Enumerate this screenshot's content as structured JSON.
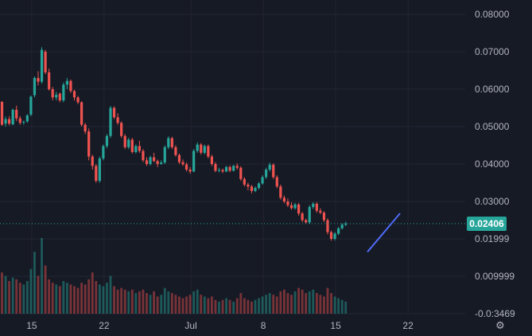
{
  "chart_data": {
    "type": "candlestick",
    "price_axis_labels": [
      "0.08000",
      "0.07000",
      "0.06000",
      "0.05000",
      "0.04000",
      "0.03000",
      "0.01999",
      "0.009999",
      "-0.0:3469"
    ],
    "price_axis_values": [
      0.08,
      0.07,
      0.06,
      0.05,
      0.04,
      0.03,
      0.01999,
      0.009999,
      0.0
    ],
    "last_price": {
      "label": "0.02406",
      "value": 0.02406
    },
    "time_axis_labels": [
      {
        "label": "15",
        "index": 8
      },
      {
        "label": "22",
        "index": 28
      },
      {
        "label": "Jul",
        "index": 52
      },
      {
        "label": "8",
        "index": 72
      },
      {
        "label": "15",
        "index": 92
      },
      {
        "label": "22",
        "index": 112
      }
    ],
    "ylim": [
      0.0,
      0.082
    ],
    "candles": [
      [
        0.0566,
        0.0568,
        0.0502,
        0.0505
      ],
      [
        0.0508,
        0.0527,
        0.05,
        0.052
      ],
      [
        0.052,
        0.0528,
        0.0503,
        0.0508
      ],
      [
        0.0506,
        0.0548,
        0.0504,
        0.0545
      ],
      [
        0.0545,
        0.0556,
        0.0515,
        0.0522
      ],
      [
        0.0522,
        0.0528,
        0.0505,
        0.051
      ],
      [
        0.0512,
        0.0516,
        0.0505,
        0.0513
      ],
      [
        0.0514,
        0.0533,
        0.051,
        0.053
      ],
      [
        0.0532,
        0.0583,
        0.0528,
        0.058
      ],
      [
        0.0584,
        0.0634,
        0.0578,
        0.063
      ],
      [
        0.063,
        0.0648,
        0.061,
        0.062
      ],
      [
        0.062,
        0.0712,
        0.0615,
        0.0705
      ],
      [
        0.07,
        0.0705,
        0.064,
        0.0645
      ],
      [
        0.0645,
        0.0655,
        0.0596,
        0.06
      ],
      [
        0.06,
        0.0606,
        0.057,
        0.0578
      ],
      [
        0.0578,
        0.0593,
        0.057,
        0.0585
      ],
      [
        0.0588,
        0.0591,
        0.0565,
        0.057
      ],
      [
        0.057,
        0.0618,
        0.0565,
        0.0612
      ],
      [
        0.0612,
        0.063,
        0.06,
        0.0622
      ],
      [
        0.0622,
        0.0626,
        0.059,
        0.0595
      ],
      [
        0.0595,
        0.0598,
        0.057,
        0.0578
      ],
      [
        0.0578,
        0.0582,
        0.056,
        0.0565
      ],
      [
        0.0565,
        0.0568,
        0.05,
        0.0505
      ],
      [
        0.0505,
        0.051,
        0.048,
        0.0487
      ],
      [
        0.0487,
        0.0495,
        0.041,
        0.042
      ],
      [
        0.042,
        0.0425,
        0.0385,
        0.0395
      ],
      [
        0.0395,
        0.04,
        0.035,
        0.0355
      ],
      [
        0.0355,
        0.042,
        0.035,
        0.0415
      ],
      [
        0.0415,
        0.0452,
        0.041,
        0.0448
      ],
      [
        0.0448,
        0.048,
        0.0442,
        0.0475
      ],
      [
        0.0475,
        0.0555,
        0.047,
        0.055
      ],
      [
        0.055,
        0.0554,
        0.052,
        0.0525
      ],
      [
        0.0525,
        0.0536,
        0.0505,
        0.051
      ],
      [
        0.051,
        0.0514,
        0.047,
        0.0475
      ],
      [
        0.0475,
        0.048,
        0.044,
        0.0445
      ],
      [
        0.0445,
        0.047,
        0.044,
        0.0465
      ],
      [
        0.0465,
        0.047,
        0.0428,
        0.0432
      ],
      [
        0.0432,
        0.0452,
        0.0428,
        0.0448
      ],
      [
        0.0448,
        0.0462,
        0.043,
        0.0435
      ],
      [
        0.0435,
        0.044,
        0.0405,
        0.041
      ],
      [
        0.041,
        0.0418,
        0.0395,
        0.04
      ],
      [
        0.04,
        0.0422,
        0.0396,
        0.0418
      ],
      [
        0.0418,
        0.043,
        0.0405,
        0.0408
      ],
      [
        0.0408,
        0.0412,
        0.0392,
        0.04
      ],
      [
        0.04,
        0.041,
        0.0398,
        0.0404
      ],
      [
        0.0404,
        0.045,
        0.04,
        0.0445
      ],
      [
        0.0445,
        0.0474,
        0.044,
        0.0469
      ],
      [
        0.0469,
        0.0473,
        0.044,
        0.0445
      ],
      [
        0.0445,
        0.045,
        0.042,
        0.0424
      ],
      [
        0.0424,
        0.0428,
        0.04,
        0.0405
      ],
      [
        0.0405,
        0.0412,
        0.0395,
        0.0399
      ],
      [
        0.0399,
        0.0404,
        0.038,
        0.0385
      ],
      [
        0.0385,
        0.0392,
        0.0374,
        0.038
      ],
      [
        0.038,
        0.044,
        0.0378,
        0.0435
      ],
      [
        0.0435,
        0.0458,
        0.043,
        0.0452
      ],
      [
        0.0452,
        0.0456,
        0.0425,
        0.043
      ],
      [
        0.043,
        0.0452,
        0.0426,
        0.0448
      ],
      [
        0.0448,
        0.0452,
        0.0415,
        0.042
      ],
      [
        0.042,
        0.0425,
        0.0395,
        0.04
      ],
      [
        0.04,
        0.0405,
        0.0378,
        0.0382
      ],
      [
        0.0382,
        0.039,
        0.0378,
        0.0384
      ],
      [
        0.0384,
        0.0388,
        0.0376,
        0.038
      ],
      [
        0.038,
        0.0395,
        0.0378,
        0.0392
      ],
      [
        0.0392,
        0.0396,
        0.0378,
        0.0382
      ],
      [
        0.0382,
        0.0398,
        0.038,
        0.0395
      ],
      [
        0.0395,
        0.0402,
        0.0385,
        0.039
      ],
      [
        0.039,
        0.0394,
        0.0355,
        0.036
      ],
      [
        0.036,
        0.0365,
        0.034,
        0.0345
      ],
      [
        0.0345,
        0.035,
        0.033,
        0.034
      ],
      [
        0.034,
        0.0344,
        0.0322,
        0.0328
      ],
      [
        0.0328,
        0.034,
        0.0325,
        0.0336
      ],
      [
        0.0336,
        0.0352,
        0.0332,
        0.0348
      ],
      [
        0.0348,
        0.037,
        0.0345,
        0.0365
      ],
      [
        0.0365,
        0.039,
        0.036,
        0.0385
      ],
      [
        0.0385,
        0.0404,
        0.038,
        0.0398
      ],
      [
        0.0398,
        0.0402,
        0.036,
        0.0365
      ],
      [
        0.0365,
        0.037,
        0.0335,
        0.034
      ],
      [
        0.034,
        0.0345,
        0.0305,
        0.031
      ],
      [
        0.031,
        0.0316,
        0.0295,
        0.03
      ],
      [
        0.03,
        0.0308,
        0.0285,
        0.029
      ],
      [
        0.029,
        0.0298,
        0.0278,
        0.0282
      ],
      [
        0.0282,
        0.0296,
        0.0278,
        0.0292
      ],
      [
        0.0292,
        0.0296,
        0.0262,
        0.0268
      ],
      [
        0.0268,
        0.0272,
        0.0245,
        0.025
      ],
      [
        0.025,
        0.0254,
        0.024,
        0.0244
      ],
      [
        0.0244,
        0.029,
        0.024,
        0.0285
      ],
      [
        0.0285,
        0.0298,
        0.028,
        0.0294
      ],
      [
        0.0294,
        0.0298,
        0.027,
        0.0275
      ],
      [
        0.0275,
        0.0282,
        0.0266,
        0.027
      ],
      [
        0.027,
        0.0274,
        0.0245,
        0.025
      ],
      [
        0.025,
        0.0255,
        0.0212,
        0.0218
      ],
      [
        0.0218,
        0.0222,
        0.0195,
        0.02
      ],
      [
        0.02,
        0.0218,
        0.0196,
        0.0214
      ],
      [
        0.0214,
        0.0232,
        0.021,
        0.0228
      ],
      [
        0.0228,
        0.0242,
        0.0225,
        0.0238
      ],
      [
        0.0238,
        0.0246,
        0.0234,
        0.02406
      ]
    ],
    "volumes": [
      0.012,
      0.011,
      0.0095,
      0.0105,
      0.01,
      0.009,
      0.0085,
      0.0095,
      0.013,
      0.018,
      0.011,
      0.022,
      0.014,
      0.01,
      0.009,
      0.0085,
      0.008,
      0.0095,
      0.009,
      0.0085,
      0.008,
      0.0075,
      0.009,
      0.0085,
      0.01,
      0.012,
      0.0095,
      0.0085,
      0.008,
      0.009,
      0.011,
      0.008,
      0.007,
      0.0075,
      0.007,
      0.0065,
      0.007,
      0.006,
      0.0065,
      0.007,
      0.006,
      0.0055,
      0.0065,
      0.005,
      0.0055,
      0.0075,
      0.0065,
      0.006,
      0.0055,
      0.005,
      0.0045,
      0.005,
      0.0055,
      0.0065,
      0.007,
      0.0055,
      0.005,
      0.0045,
      0.005,
      0.004,
      0.0035,
      0.004,
      0.0045,
      0.004,
      0.0035,
      0.0045,
      0.006,
      0.0045,
      0.004,
      0.0035,
      0.004,
      0.0045,
      0.005,
      0.0055,
      0.006,
      0.0055,
      0.005,
      0.0065,
      0.007,
      0.006,
      0.0055,
      0.0065,
      0.0075,
      0.007,
      0.006,
      0.0065,
      0.007,
      0.006,
      0.0055,
      0.005,
      0.0075,
      0.006,
      0.005,
      0.0045,
      0.004,
      0.0035
    ],
    "trendline": {
      "from": {
        "index": 101,
        "value": 0.0165
      },
      "to": {
        "index": 110,
        "value": 0.0268
      }
    },
    "colors": {
      "up": "#26a69a",
      "down": "#ef5350",
      "trendline": "#4f6af5",
      "background": "#161a25",
      "grid": "#232632",
      "axis_text": "#b2b5be",
      "last_price": "#26a69a"
    }
  },
  "toolbar": {
    "settings_icon": "gear-icon"
  }
}
